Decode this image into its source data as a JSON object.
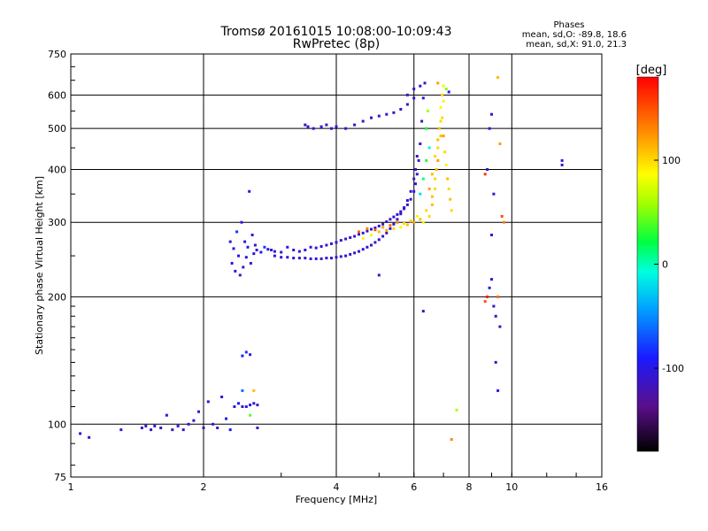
{
  "chart_data": {
    "type": "scatter",
    "title": "Tromsø 20161015 10:08:00-10:09:43",
    "subtitle": "RwPretec (8p)",
    "xlabel": "Frequency [MHz]",
    "ylabel": "Stationary phase Virtual Height [km]",
    "x_scale": "log",
    "y_scale": "log",
    "xlim": [
      1,
      16
    ],
    "ylim": [
      75,
      750
    ],
    "x_ticks": [
      1,
      2,
      4,
      6,
      8,
      10,
      16
    ],
    "x_tick_labels": [
      "1",
      "2",
      "4",
      "6",
      "8",
      "10",
      "16"
    ],
    "y_ticks": [
      75,
      100,
      200,
      300,
      400,
      500,
      600,
      750
    ],
    "y_tick_labels": [
      "75",
      "100",
      "200",
      "300",
      "400",
      "500",
      "600",
      "750"
    ],
    "grid": true,
    "phase_info": {
      "title": "Phases",
      "line1": "mean, sd,O: -89.8, 18.6",
      "line2": "mean, sd,X:  91.0, 21.3"
    },
    "colorbar": {
      "label": "[deg]",
      "range": [
        -180,
        180
      ],
      "ticks": [
        100,
        0,
        -100
      ],
      "tick_labels": [
        "100",
        "0",
        "-100"
      ]
    },
    "series": [
      {
        "points": [
          [
            1.05,
            95,
            -110
          ],
          [
            1.1,
            93,
            -110
          ],
          [
            1.3,
            97,
            -110
          ],
          [
            1.45,
            98,
            -105
          ],
          [
            1.48,
            99,
            -110
          ],
          [
            1.52,
            97,
            -110
          ],
          [
            1.55,
            99,
            -100
          ],
          [
            1.6,
            98,
            -110
          ],
          [
            1.65,
            105,
            -110
          ],
          [
            1.7,
            97,
            -110
          ],
          [
            1.75,
            99,
            -105
          ],
          [
            1.8,
            97,
            -110
          ],
          [
            1.85,
            100,
            -110
          ],
          [
            1.9,
            102,
            -110
          ],
          [
            1.95,
            107,
            -100
          ],
          [
            2.0,
            98,
            -110
          ],
          [
            2.05,
            113,
            -110
          ],
          [
            2.1,
            100,
            -110
          ],
          [
            2.15,
            98,
            -110
          ],
          [
            2.2,
            116,
            -100
          ],
          [
            2.25,
            103,
            -100
          ],
          [
            2.3,
            97,
            -90
          ],
          [
            2.35,
            110,
            -100
          ],
          [
            2.4,
            112,
            -90
          ],
          [
            2.45,
            110,
            -110
          ],
          [
            2.5,
            110,
            -100
          ],
          [
            2.55,
            111,
            -100
          ],
          [
            2.6,
            112,
            -100
          ],
          [
            2.65,
            111,
            -110
          ],
          [
            2.45,
            145,
            -90
          ],
          [
            2.5,
            148,
            -80
          ],
          [
            2.55,
            146,
            -100
          ],
          [
            2.45,
            120,
            -60
          ],
          [
            2.6,
            120,
            110
          ],
          [
            2.55,
            105,
            40
          ],
          [
            2.65,
            98,
            -110
          ],
          [
            2.3,
            270,
            -110
          ],
          [
            2.32,
            240,
            -105
          ],
          [
            2.34,
            260,
            -90
          ],
          [
            2.36,
            230,
            -110
          ],
          [
            2.38,
            285,
            -80
          ],
          [
            2.4,
            250,
            -100
          ],
          [
            2.42,
            225,
            -110
          ],
          [
            2.44,
            300,
            -100
          ],
          [
            2.46,
            235,
            -110
          ],
          [
            2.48,
            270,
            -100
          ],
          [
            2.5,
            248,
            -110
          ],
          [
            2.52,
            262,
            -90
          ],
          [
            2.54,
            355,
            -105
          ],
          [
            2.56,
            240,
            -110
          ],
          [
            2.58,
            280,
            -100
          ],
          [
            2.6,
            253,
            -110
          ],
          [
            2.62,
            265,
            -110
          ],
          [
            2.64,
            258,
            -100
          ],
          [
            2.7,
            255,
            -100
          ],
          [
            2.75,
            262,
            -80
          ],
          [
            2.8,
            259,
            -100
          ],
          [
            2.85,
            258,
            -110
          ],
          [
            2.9,
            256,
            -110
          ],
          [
            3.0,
            255,
            -110
          ],
          [
            3.1,
            262,
            -100
          ],
          [
            3.2,
            258,
            -110
          ],
          [
            3.3,
            256,
            -100
          ],
          [
            3.4,
            258,
            -110
          ],
          [
            3.5,
            262,
            -100
          ],
          [
            3.6,
            261,
            -110
          ],
          [
            3.7,
            263,
            -100
          ],
          [
            3.8,
            265,
            -110
          ],
          [
            3.9,
            267,
            -110
          ],
          [
            4.0,
            269,
            -100
          ],
          [
            4.1,
            272,
            -110
          ],
          [
            4.2,
            274,
            -110
          ],
          [
            4.3,
            276,
            -100
          ],
          [
            4.4,
            278,
            -110
          ],
          [
            4.5,
            281,
            -110
          ],
          [
            4.6,
            283,
            -110
          ],
          [
            4.7,
            286,
            -110
          ],
          [
            4.8,
            289,
            -110
          ],
          [
            4.9,
            291,
            -110
          ],
          [
            5.0,
            294,
            -100
          ],
          [
            5.1,
            297,
            -110
          ],
          [
            5.2,
            301,
            -110
          ],
          [
            5.3,
            305,
            -110
          ],
          [
            5.4,
            309,
            -110
          ],
          [
            5.5,
            313,
            -110
          ],
          [
            5.6,
            318,
            -110
          ],
          [
            5.7,
            323,
            -110
          ],
          [
            5.8,
            330,
            -110
          ],
          [
            5.9,
            340,
            -110
          ],
          [
            6.0,
            355,
            -110
          ],
          [
            6.05,
            370,
            -110
          ],
          [
            6.1,
            390,
            -110
          ],
          [
            6.15,
            420,
            -110
          ],
          [
            6.2,
            460,
            -110
          ],
          [
            6.25,
            520,
            -110
          ],
          [
            6.3,
            590,
            -110
          ],
          [
            6.35,
            640,
            -110
          ],
          [
            2.9,
            250,
            -110
          ],
          [
            3.0,
            248,
            -110
          ],
          [
            3.1,
            248,
            -110
          ],
          [
            3.2,
            247,
            -110
          ],
          [
            3.3,
            247,
            -110
          ],
          [
            3.4,
            247,
            -110
          ],
          [
            3.5,
            246,
            -110
          ],
          [
            3.6,
            246,
            -110
          ],
          [
            3.7,
            246,
            -110
          ],
          [
            3.8,
            247,
            -110
          ],
          [
            3.9,
            247,
            -110
          ],
          [
            4.0,
            248,
            -110
          ],
          [
            4.1,
            249,
            -110
          ],
          [
            4.2,
            250,
            -110
          ],
          [
            4.3,
            252,
            -110
          ],
          [
            4.4,
            254,
            -110
          ],
          [
            4.5,
            256,
            -110
          ],
          [
            4.6,
            259,
            -110
          ],
          [
            4.7,
            262,
            -110
          ],
          [
            4.8,
            265,
            -110
          ],
          [
            4.9,
            269,
            -110
          ],
          [
            5.0,
            273,
            -110
          ],
          [
            5.1,
            278,
            -110
          ],
          [
            5.2,
            283,
            -110
          ],
          [
            5.3,
            290,
            -110
          ],
          [
            5.4,
            297,
            -110
          ],
          [
            5.5,
            305,
            -110
          ],
          [
            5.6,
            314,
            -110
          ],
          [
            5.7,
            325,
            -110
          ],
          [
            5.8,
            338,
            -110
          ],
          [
            5.9,
            355,
            -110
          ],
          [
            6.0,
            380,
            -110
          ],
          [
            6.05,
            400,
            -110
          ],
          [
            6.1,
            430,
            -110
          ],
          [
            3.4,
            510,
            -110
          ],
          [
            3.45,
            505,
            -100
          ],
          [
            3.55,
            500,
            -110
          ],
          [
            3.7,
            505,
            -100
          ],
          [
            3.8,
            510,
            -110
          ],
          [
            3.9,
            500,
            -100
          ],
          [
            4.0,
            505,
            -110
          ],
          [
            4.2,
            500,
            -100
          ],
          [
            4.4,
            510,
            -110
          ],
          [
            4.6,
            520,
            -110
          ],
          [
            4.8,
            530,
            -110
          ],
          [
            5.0,
            535,
            -110
          ],
          [
            5.2,
            540,
            -100
          ],
          [
            5.4,
            545,
            -110
          ],
          [
            5.6,
            555,
            -110
          ],
          [
            5.8,
            570,
            -110
          ],
          [
            6.0,
            590,
            -110
          ],
          [
            4.5,
            285,
            140
          ],
          [
            4.7,
            290,
            130
          ],
          [
            4.9,
            288,
            150
          ],
          [
            5.1,
            292,
            120
          ],
          [
            5.3,
            295,
            140
          ],
          [
            5.5,
            300,
            130
          ],
          [
            5.7,
            298,
            100
          ],
          [
            5.9,
            302,
            110
          ],
          [
            6.1,
            310,
            90
          ],
          [
            6.3,
            300,
            80
          ],
          [
            6.5,
            310,
            100
          ],
          [
            6.6,
            330,
            110
          ],
          [
            6.7,
            360,
            100
          ],
          [
            6.75,
            400,
            110
          ],
          [
            6.8,
            450,
            100
          ],
          [
            6.85,
            500,
            110
          ],
          [
            6.9,
            560,
            90
          ],
          [
            6.95,
            600,
            100
          ],
          [
            4.6,
            275,
            90
          ],
          [
            4.8,
            280,
            80
          ],
          [
            5.0,
            285,
            110
          ],
          [
            5.2,
            287,
            120
          ],
          [
            5.4,
            290,
            100
          ],
          [
            5.6,
            292,
            90
          ],
          [
            5.8,
            296,
            110
          ],
          [
            6.0,
            300,
            120
          ],
          [
            6.2,
            305,
            110
          ],
          [
            6.4,
            320,
            100
          ],
          [
            6.6,
            345,
            110
          ],
          [
            6.7,
            380,
            100
          ],
          [
            6.8,
            420,
            120
          ],
          [
            6.9,
            480,
            110
          ],
          [
            6.95,
            530,
            100
          ],
          [
            7.0,
            580,
            90
          ],
          [
            6.5,
            360,
            120
          ],
          [
            6.6,
            390,
            110
          ],
          [
            6.7,
            430,
            100
          ],
          [
            6.8,
            470,
            110
          ],
          [
            6.9,
            520,
            100
          ],
          [
            7.0,
            480,
            120
          ],
          [
            7.05,
            440,
            100
          ],
          [
            7.1,
            410,
            90
          ],
          [
            7.15,
            380,
            110
          ],
          [
            7.2,
            360,
            100
          ],
          [
            7.25,
            340,
            110
          ],
          [
            7.3,
            320,
            100
          ],
          [
            7.1,
            620,
            50
          ],
          [
            7.0,
            630,
            80
          ],
          [
            6.8,
            640,
            120
          ],
          [
            7.2,
            610,
            -100
          ],
          [
            6.2,
            350,
            -20
          ],
          [
            6.3,
            380,
            10
          ],
          [
            6.4,
            420,
            30
          ],
          [
            6.5,
            450,
            -10
          ],
          [
            6.4,
            500,
            20
          ],
          [
            6.45,
            550,
            60
          ],
          [
            5.8,
            600,
            -110
          ],
          [
            6.0,
            620,
            -110
          ],
          [
            6.2,
            630,
            -100
          ],
          [
            9.0,
            540,
            -110
          ],
          [
            8.9,
            500,
            -100
          ],
          [
            8.8,
            400,
            -110
          ],
          [
            8.7,
            390,
            160
          ],
          [
            9.1,
            350,
            -110
          ],
          [
            9.3,
            660,
            110
          ],
          [
            9.4,
            460,
            120
          ],
          [
            9.5,
            310,
            150
          ],
          [
            9.6,
            300,
            130
          ],
          [
            9.0,
            280,
            -110
          ],
          [
            9.0,
            220,
            -110
          ],
          [
            8.9,
            210,
            -100
          ],
          [
            8.8,
            200,
            170
          ],
          [
            8.7,
            195,
            150
          ],
          [
            9.1,
            190,
            -110
          ],
          [
            9.2,
            180,
            -110
          ],
          [
            9.3,
            200,
            140
          ],
          [
            9.4,
            170,
            -110
          ],
          [
            9.2,
            140,
            -110
          ],
          [
            9.3,
            120,
            -100
          ],
          [
            7.5,
            108,
            60
          ],
          [
            7.3,
            92,
            130
          ],
          [
            6.3,
            185,
            -110
          ],
          [
            5.0,
            225,
            -110
          ],
          [
            13.0,
            420,
            -110
          ],
          [
            13.0,
            410,
            -110
          ]
        ]
      }
    ]
  }
}
